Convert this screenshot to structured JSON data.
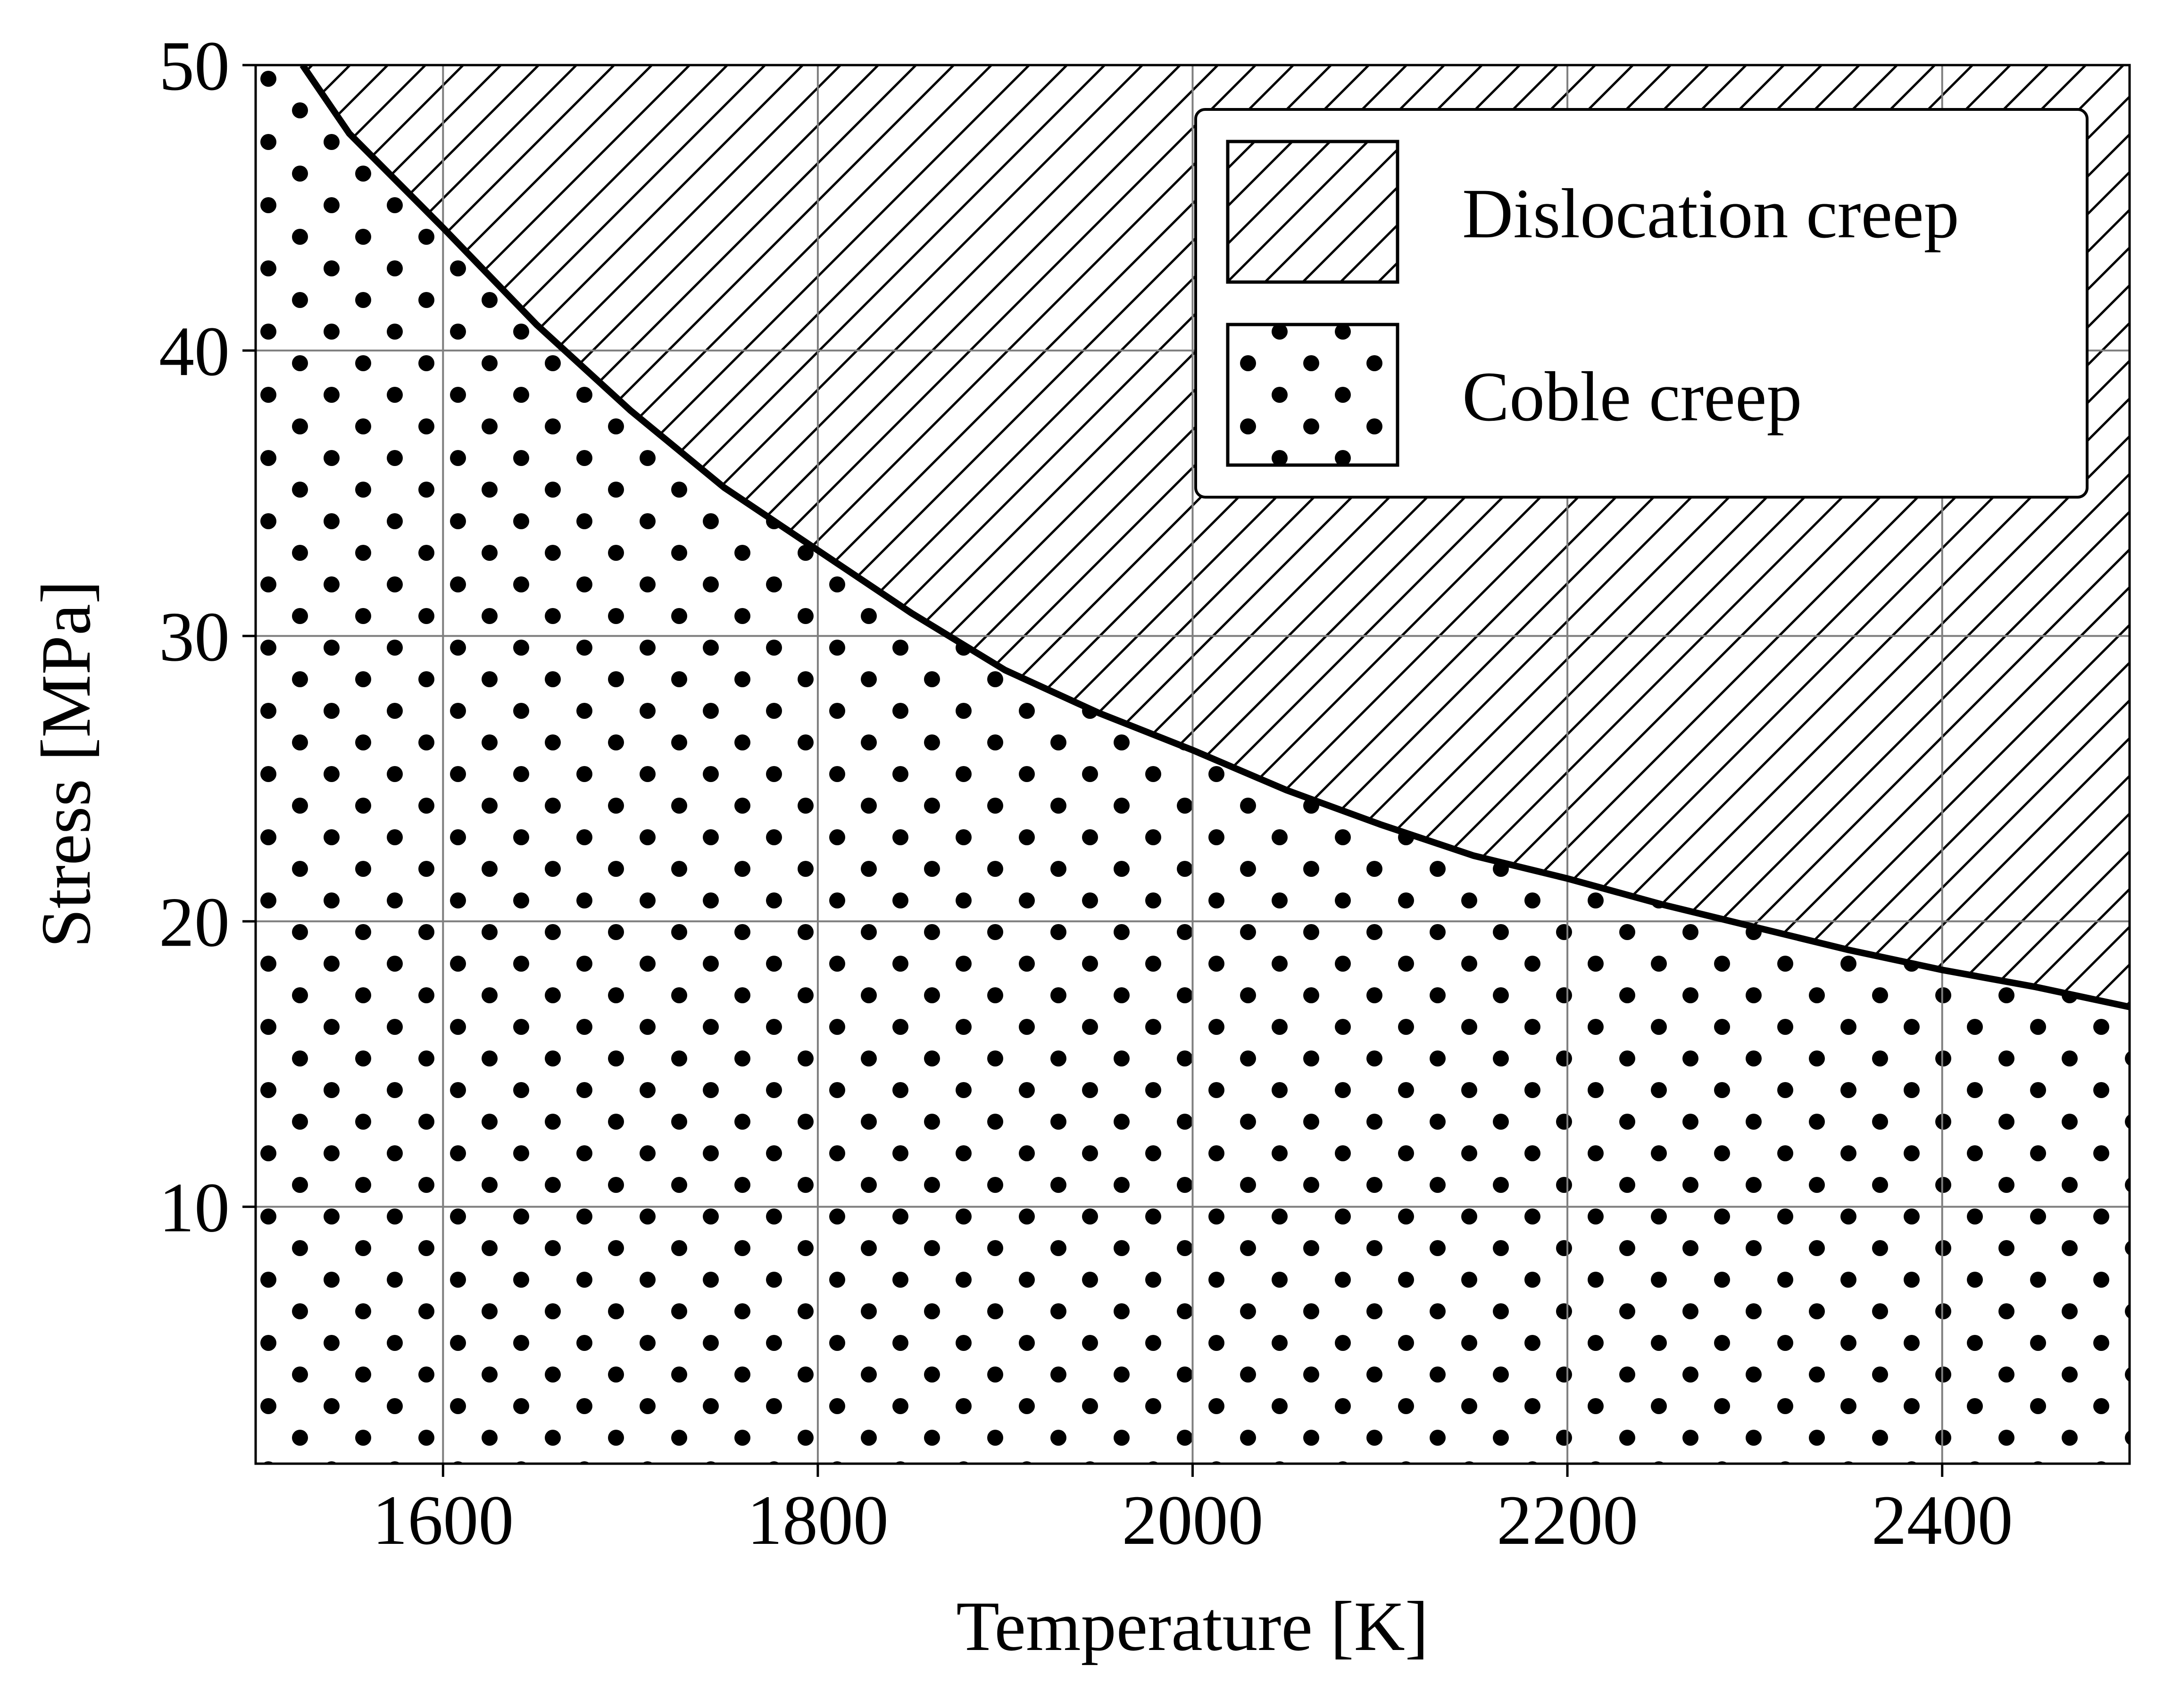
{
  "chart_data": {
    "type": "area",
    "xlabel": "Temperature [K]",
    "ylabel": "Stress [MPa]",
    "xlim": [
      1500,
      2500
    ],
    "ylim": [
      1,
      50
    ],
    "x_ticks": [
      1600,
      1800,
      2000,
      2200,
      2400
    ],
    "y_ticks": [
      10,
      20,
      30,
      40,
      50
    ],
    "grid": true,
    "legend_position": "top-right",
    "boundary_curve": {
      "x": [
        1525,
        1550,
        1600,
        1650,
        1700,
        1750,
        1800,
        1850,
        1900,
        1950,
        2000,
        2050,
        2100,
        2150,
        2200,
        2250,
        2300,
        2350,
        2400,
        2450,
        2500
      ],
      "y": [
        50.0,
        47.6,
        44.3,
        40.9,
        37.9,
        35.2,
        33.0,
        30.8,
        28.8,
        27.3,
        26.0,
        24.6,
        23.4,
        22.3,
        21.5,
        20.6,
        19.8,
        19.0,
        18.3,
        17.7,
        17.0
      ]
    },
    "series": [
      {
        "name": "Dislocation creep",
        "region": "above boundary curve",
        "pattern": "hatch"
      },
      {
        "name": "Coble creep",
        "region": "below boundary curve",
        "pattern": "dots"
      }
    ]
  },
  "colors": {
    "ink": "#000000",
    "grid": "#7f7f7f",
    "background": "#ffffff"
  }
}
